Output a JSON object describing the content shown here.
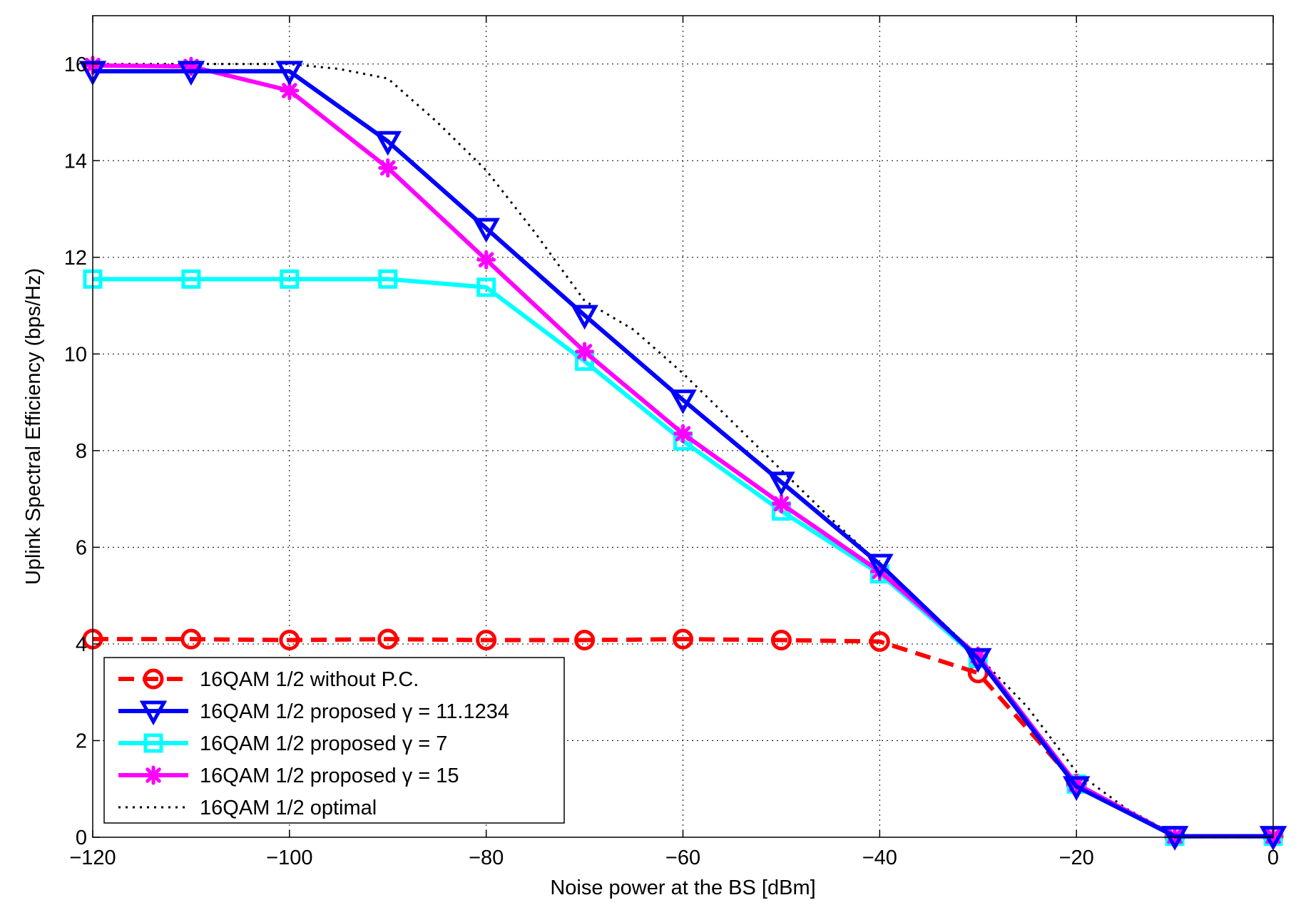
{
  "chart_data": {
    "type": "line",
    "title": "",
    "xlabel": "Noise power at the BS [dBm]",
    "ylabel": "Uplink Spectral Efficiency (bps/Hz)",
    "xlim": [
      -120,
      0
    ],
    "ylim": [
      0,
      17
    ],
    "grid": true,
    "legend_position": "bottom-left",
    "x_ticks": [
      -120,
      -100,
      -80,
      -60,
      -40,
      -20,
      0
    ],
    "x_tick_labels": [
      "−120",
      "−100",
      "−80",
      "−60",
      "−40",
      "−20",
      "0"
    ],
    "y_ticks": [
      0,
      2,
      4,
      6,
      8,
      10,
      12,
      14,
      16
    ],
    "y_tick_labels": [
      "0",
      "2",
      "4",
      "6",
      "8",
      "10",
      "12",
      "14",
      "16"
    ],
    "x": [
      -120,
      -110,
      -100,
      -90,
      -80,
      -70,
      -60,
      -50,
      -40,
      -30,
      -20,
      -10,
      0
    ],
    "series": [
      {
        "name": "16QAM 1/2 without P.C.",
        "color": "#ff0000",
        "line_style": "dashed",
        "marker": "circle",
        "values": [
          4.1,
          4.1,
          4.08,
          4.1,
          4.08,
          4.08,
          4.1,
          4.08,
          4.05,
          3.4,
          1.1,
          0.02,
          0.02
        ]
      },
      {
        "name": "16QAM 1/2 proposed γ = 11.1234",
        "color": "#0000ff",
        "line_style": "solid",
        "marker": "triangle-down",
        "values": [
          15.85,
          15.85,
          15.85,
          14.4,
          12.6,
          10.8,
          9.05,
          7.35,
          5.65,
          3.7,
          1.05,
          0.02,
          0.02
        ]
      },
      {
        "name": "16QAM 1/2 proposed γ = 7",
        "color": "#00ffff",
        "line_style": "solid",
        "marker": "square",
        "values": [
          11.55,
          11.55,
          11.55,
          11.55,
          11.38,
          9.85,
          8.2,
          6.75,
          5.45,
          3.7,
          1.1,
          0.02,
          0.02
        ]
      },
      {
        "name": "16QAM 1/2 proposed γ = 15",
        "color": "#ff00ff",
        "line_style": "solid",
        "marker": "asterisk",
        "values": [
          15.97,
          15.95,
          15.45,
          13.85,
          11.95,
          10.05,
          8.35,
          6.9,
          5.5,
          3.75,
          1.1,
          0.02,
          0.02
        ]
      },
      {
        "name": "16QAM 1/2 optimal",
        "color": "#000000",
        "line_style": "dotted",
        "marker": "none",
        "x": [
          -120,
          -110,
          -105,
          -100,
          -95,
          -90,
          -85,
          -80,
          -75,
          -70,
          -65,
          -60,
          -55,
          -50,
          -45,
          -40,
          -35,
          -30,
          -25,
          -20,
          -15,
          -10,
          -5,
          0
        ],
        "values": [
          16.0,
          16.0,
          16.0,
          16.0,
          15.9,
          15.7,
          14.8,
          13.8,
          12.5,
          11.1,
          10.5,
          9.6,
          8.6,
          7.6,
          6.6,
          5.65,
          4.7,
          3.75,
          2.7,
          1.35,
          0.6,
          0.05,
          0.02,
          0.02
        ]
      }
    ]
  }
}
